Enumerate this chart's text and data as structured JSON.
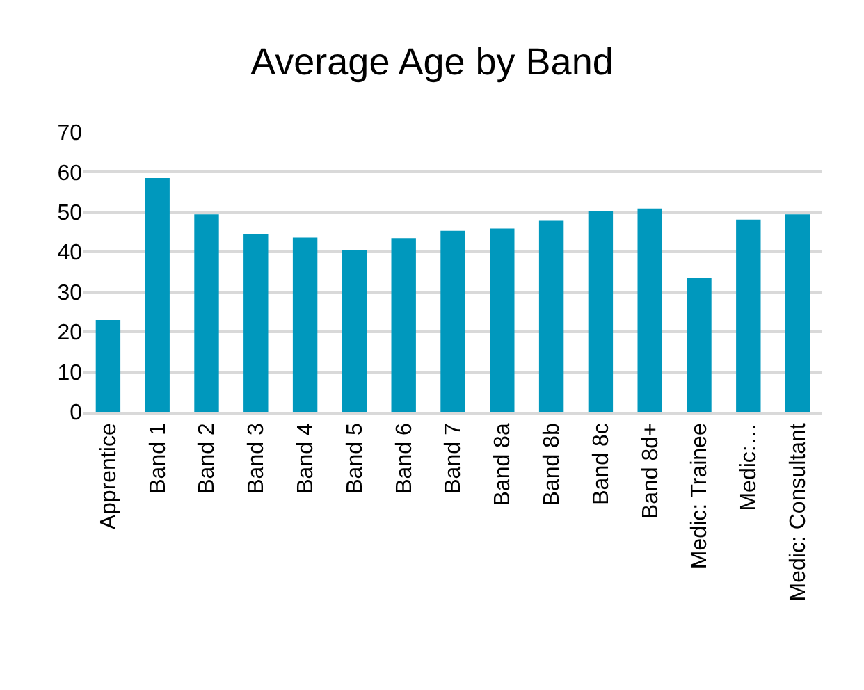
{
  "chart_data": {
    "type": "bar",
    "title": "Average Age by Band",
    "categories": [
      "Apprentice",
      "Band 1",
      "Band 2",
      "Band 3",
      "Band 4",
      "Band 5",
      "Band 6",
      "Band 7",
      "Band 8a",
      "Band 8b",
      "Band 8c",
      "Band 8d+",
      "Medic: Trainee",
      "Medic:…",
      "Medic: Consultant"
    ],
    "values": [
      23,
      58.5,
      49.4,
      44.5,
      43.6,
      40.4,
      43.5,
      45.3,
      45.9,
      47.8,
      50.3,
      50.9,
      33.6,
      48.1,
      49.4
    ],
    "color": "#0098bd",
    "ylim": [
      0,
      70
    ],
    "yticks": [
      0,
      10,
      20,
      30,
      40,
      50,
      60,
      70
    ],
    "grid": "y",
    "legend": false
  }
}
